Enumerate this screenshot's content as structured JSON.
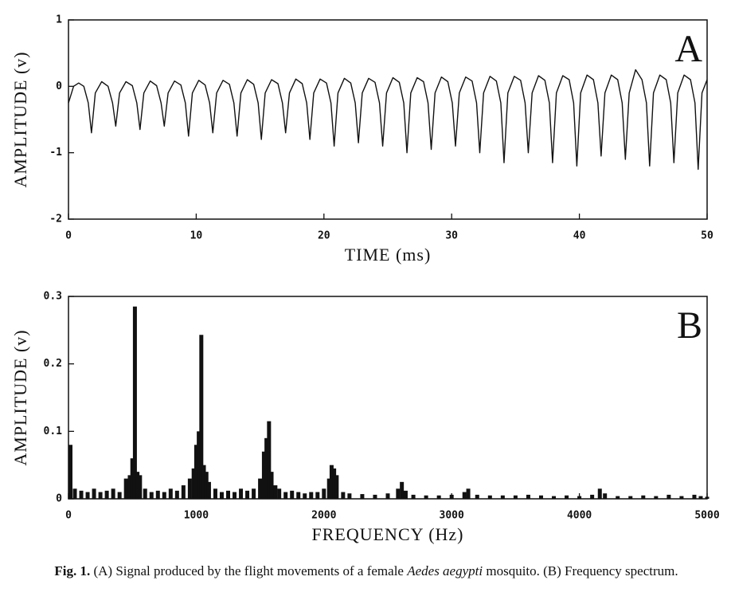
{
  "chart_data": [
    {
      "type": "line",
      "annotation": "A",
      "xlabel": "TIME (ms)",
      "ylabel": "AMPLITUDE (v)",
      "xlim": [
        0,
        50
      ],
      "ylim": [
        -2,
        1
      ],
      "xticks": [
        0,
        10,
        20,
        30,
        40,
        50
      ],
      "yticks": [
        -2,
        -1,
        0,
        1
      ],
      "color": "#111111",
      "x": [
        0,
        0.4,
        0.8,
        1.2,
        1.55,
        1.8,
        2.1,
        2.6,
        3.1,
        3.45,
        3.7,
        4.0,
        4.5,
        5.0,
        5.35,
        5.6,
        5.9,
        6.4,
        6.9,
        7.25,
        7.5,
        7.8,
        8.3,
        8.8,
        9.15,
        9.4,
        9.7,
        10.2,
        10.7,
        11.05,
        11.3,
        11.6,
        12.1,
        12.6,
        12.95,
        13.2,
        13.5,
        14.0,
        14.5,
        14.85,
        15.1,
        15.4,
        15.9,
        16.4,
        16.75,
        17.0,
        17.3,
        17.8,
        18.3,
        18.65,
        18.9,
        19.2,
        19.7,
        20.2,
        20.55,
        20.8,
        21.1,
        21.6,
        22.1,
        22.45,
        22.7,
        23.0,
        23.5,
        24.0,
        24.35,
        24.6,
        24.9,
        25.4,
        25.9,
        26.25,
        26.5,
        26.8,
        27.3,
        27.8,
        28.15,
        28.4,
        28.7,
        29.2,
        29.7,
        30.05,
        30.3,
        30.6,
        31.1,
        31.6,
        31.95,
        32.2,
        32.5,
        33.0,
        33.5,
        33.85,
        34.1,
        34.4,
        34.9,
        35.4,
        35.75,
        36.0,
        36.3,
        36.8,
        37.3,
        37.65,
        37.9,
        38.2,
        38.7,
        39.2,
        39.55,
        39.8,
        40.1,
        40.6,
        41.1,
        41.45,
        41.7,
        42.0,
        42.5,
        43.0,
        43.35,
        43.6,
        43.9,
        44.4,
        44.9,
        45.25,
        45.5,
        45.8,
        46.3,
        46.8,
        47.15,
        47.4,
        47.7,
        48.2,
        48.7,
        49.05,
        49.3,
        49.6,
        50.0
      ],
      "values": [
        -0.25,
        0.0,
        0.05,
        0.0,
        -0.25,
        -0.7,
        -0.1,
        0.07,
        0.0,
        -0.25,
        -0.6,
        -0.1,
        0.07,
        0.01,
        -0.25,
        -0.65,
        -0.1,
        0.08,
        0.01,
        -0.25,
        -0.6,
        -0.1,
        0.08,
        0.02,
        -0.25,
        -0.75,
        -0.1,
        0.09,
        0.02,
        -0.25,
        -0.7,
        -0.1,
        0.09,
        0.03,
        -0.25,
        -0.75,
        -0.1,
        0.1,
        0.03,
        -0.25,
        -0.8,
        -0.1,
        0.1,
        0.04,
        -0.25,
        -0.7,
        -0.1,
        0.11,
        0.04,
        -0.25,
        -0.8,
        -0.1,
        0.11,
        0.05,
        -0.25,
        -0.9,
        -0.1,
        0.12,
        0.05,
        -0.25,
        -0.85,
        -0.1,
        0.12,
        0.06,
        -0.25,
        -0.9,
        -0.1,
        0.13,
        0.06,
        -0.25,
        -1.0,
        -0.1,
        0.13,
        0.07,
        -0.25,
        -0.95,
        -0.1,
        0.14,
        0.07,
        -0.25,
        -0.9,
        -0.1,
        0.14,
        0.08,
        -0.25,
        -1.0,
        -0.1,
        0.15,
        0.08,
        -0.25,
        -1.15,
        -0.1,
        0.15,
        0.09,
        -0.25,
        -1.0,
        -0.1,
        0.16,
        0.09,
        -0.25,
        -1.15,
        -0.1,
        0.16,
        0.1,
        -0.25,
        -1.2,
        -0.1,
        0.17,
        0.1,
        -0.25,
        -1.05,
        -0.1,
        0.17,
        0.1,
        -0.25,
        -1.1,
        -0.1,
        0.25,
        0.1,
        -0.25,
        -1.2,
        -0.1,
        0.17,
        0.1,
        -0.25,
        -1.15,
        -0.1,
        0.17,
        0.1,
        -0.25,
        -1.25,
        -0.1,
        0.1
      ]
    },
    {
      "type": "bar",
      "annotation": "B",
      "xlabel": "FREQUENCY (Hz)",
      "ylabel": "AMPLITUDE (v)",
      "xlim": [
        0,
        5000
      ],
      "ylim": [
        0,
        0.3
      ],
      "xticks": [
        0,
        1000,
        2000,
        3000,
        4000,
        5000
      ],
      "yticks": [
        0,
        0.1,
        0.2,
        0.3
      ],
      "color": "#111111",
      "x": [
        0,
        50,
        100,
        150,
        200,
        250,
        300,
        350,
        400,
        450,
        480,
        500,
        520,
        540,
        560,
        600,
        650,
        700,
        750,
        800,
        850,
        900,
        950,
        980,
        1000,
        1020,
        1040,
        1060,
        1080,
        1100,
        1150,
        1200,
        1250,
        1300,
        1350,
        1400,
        1450,
        1500,
        1530,
        1550,
        1570,
        1590,
        1620,
        1650,
        1700,
        1750,
        1800,
        1850,
        1900,
        1950,
        2000,
        2040,
        2060,
        2080,
        2100,
        2150,
        2200,
        2300,
        2400,
        2500,
        2580,
        2610,
        2640,
        2700,
        2800,
        2900,
        3000,
        3100,
        3130,
        3200,
        3300,
        3400,
        3500,
        3600,
        3700,
        3800,
        3900,
        4000,
        4100,
        4160,
        4200,
        4300,
        4400,
        4500,
        4600,
        4700,
        4800,
        4900,
        4950,
        5000
      ],
      "values": [
        0.08,
        0.015,
        0.012,
        0.01,
        0.015,
        0.01,
        0.012,
        0.015,
        0.01,
        0.03,
        0.035,
        0.06,
        0.285,
        0.04,
        0.035,
        0.015,
        0.01,
        0.012,
        0.01,
        0.015,
        0.012,
        0.02,
        0.03,
        0.045,
        0.08,
        0.1,
        0.243,
        0.05,
        0.04,
        0.025,
        0.015,
        0.01,
        0.012,
        0.01,
        0.015,
        0.012,
        0.015,
        0.03,
        0.07,
        0.09,
        0.115,
        0.04,
        0.02,
        0.015,
        0.01,
        0.012,
        0.01,
        0.008,
        0.01,
        0.01,
        0.015,
        0.03,
        0.05,
        0.045,
        0.035,
        0.01,
        0.008,
        0.007,
        0.006,
        0.008,
        0.015,
        0.025,
        0.012,
        0.006,
        0.005,
        0.005,
        0.006,
        0.01,
        0.015,
        0.006,
        0.005,
        0.005,
        0.005,
        0.006,
        0.005,
        0.004,
        0.005,
        0.004,
        0.006,
        0.015,
        0.008,
        0.004,
        0.004,
        0.005,
        0.004,
        0.006,
        0.004,
        0.006,
        0.004,
        0.003
      ]
    }
  ],
  "caption": {
    "label": "Fig. 1.",
    "before": "(A) Signal produced by the flight movements of a female",
    "species": "Aedes aegypti",
    "after": "mosquito. (B) Frequency spectrum."
  }
}
